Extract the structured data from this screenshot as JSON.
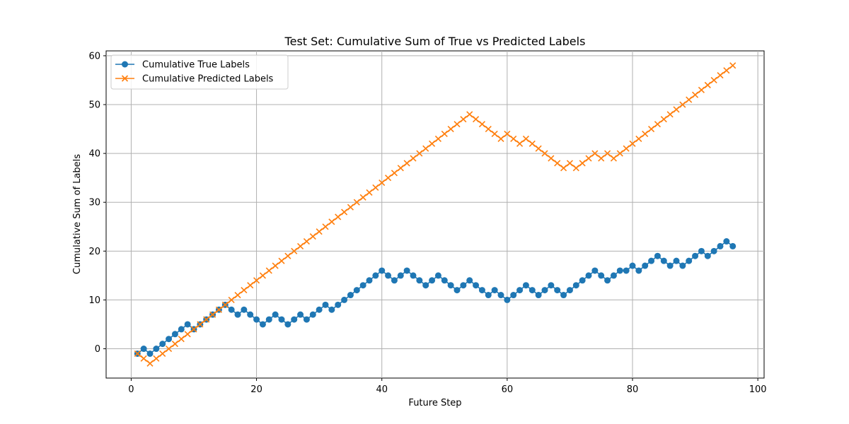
{
  "chart_data": {
    "type": "line",
    "title": "Test Set: Cumulative Sum of True vs Predicted Labels",
    "xlabel": "Future Step",
    "ylabel": "Cumulative Sum of Labels",
    "xlim": [
      -4,
      101
    ],
    "ylim": [
      -6,
      61
    ],
    "xticks": [
      0,
      20,
      40,
      60,
      80,
      100
    ],
    "yticks": [
      0,
      10,
      20,
      30,
      40,
      50,
      60
    ],
    "grid": true,
    "legend_position": "top-left",
    "x": [
      1,
      2,
      3,
      4,
      5,
      6,
      7,
      8,
      9,
      10,
      11,
      12,
      13,
      14,
      15,
      16,
      17,
      18,
      19,
      20,
      21,
      22,
      23,
      24,
      25,
      26,
      27,
      28,
      29,
      30,
      31,
      32,
      33,
      34,
      35,
      36,
      37,
      38,
      39,
      40,
      41,
      42,
      43,
      44,
      45,
      46,
      47,
      48,
      49,
      50,
      51,
      52,
      53,
      54,
      55,
      56,
      57,
      58,
      59,
      60,
      61,
      62,
      63,
      64,
      65,
      66,
      67,
      68,
      69,
      70,
      71,
      72,
      73,
      74,
      75,
      76,
      77,
      78,
      79,
      80,
      81,
      82,
      83,
      84,
      85,
      86,
      87,
      88,
      89,
      90,
      91,
      92,
      93,
      94,
      95,
      96
    ],
    "series": [
      {
        "name": "Cumulative True Labels",
        "color": "#1f77b4",
        "marker": "circle",
        "values": [
          -1,
          0,
          -1,
          0,
          1,
          2,
          3,
          4,
          5,
          4,
          5,
          6,
          7,
          8,
          9,
          8,
          7,
          8,
          7,
          6,
          5,
          6,
          7,
          6,
          5,
          6,
          7,
          6,
          7,
          8,
          9,
          8,
          9,
          10,
          11,
          12,
          13,
          14,
          15,
          16,
          15,
          14,
          15,
          16,
          15,
          14,
          13,
          14,
          15,
          14,
          13,
          12,
          13,
          14,
          13,
          12,
          11,
          12,
          11,
          10,
          11,
          12,
          13,
          12,
          11,
          12,
          13,
          12,
          11,
          12,
          13,
          14,
          15,
          16,
          15,
          14,
          15,
          16,
          16,
          17,
          16,
          17,
          18,
          19,
          18,
          17,
          18,
          17,
          18,
          19,
          20,
          19,
          20,
          21,
          22,
          21
        ]
      },
      {
        "name": "Cumulative Predicted Labels",
        "color": "#ff7f0e",
        "marker": "x",
        "values": [
          -1,
          -2,
          -3,
          -2,
          -1,
          0,
          1,
          2,
          3,
          4,
          5,
          6,
          7,
          8,
          9,
          10,
          11,
          12,
          13,
          14,
          15,
          16,
          17,
          18,
          19,
          20,
          21,
          22,
          23,
          24,
          25,
          26,
          27,
          28,
          29,
          30,
          31,
          32,
          33,
          34,
          35,
          36,
          37,
          38,
          39,
          40,
          41,
          42,
          43,
          44,
          45,
          46,
          47,
          48,
          47,
          46,
          45,
          44,
          43,
          44,
          43,
          42,
          43,
          42,
          41,
          40,
          39,
          38,
          37,
          38,
          37,
          38,
          39,
          40,
          39,
          40,
          39,
          40,
          41,
          42,
          43,
          44,
          45,
          46,
          47,
          48,
          49,
          50,
          51,
          52,
          53,
          54,
          55,
          56,
          57,
          58
        ]
      }
    ]
  }
}
